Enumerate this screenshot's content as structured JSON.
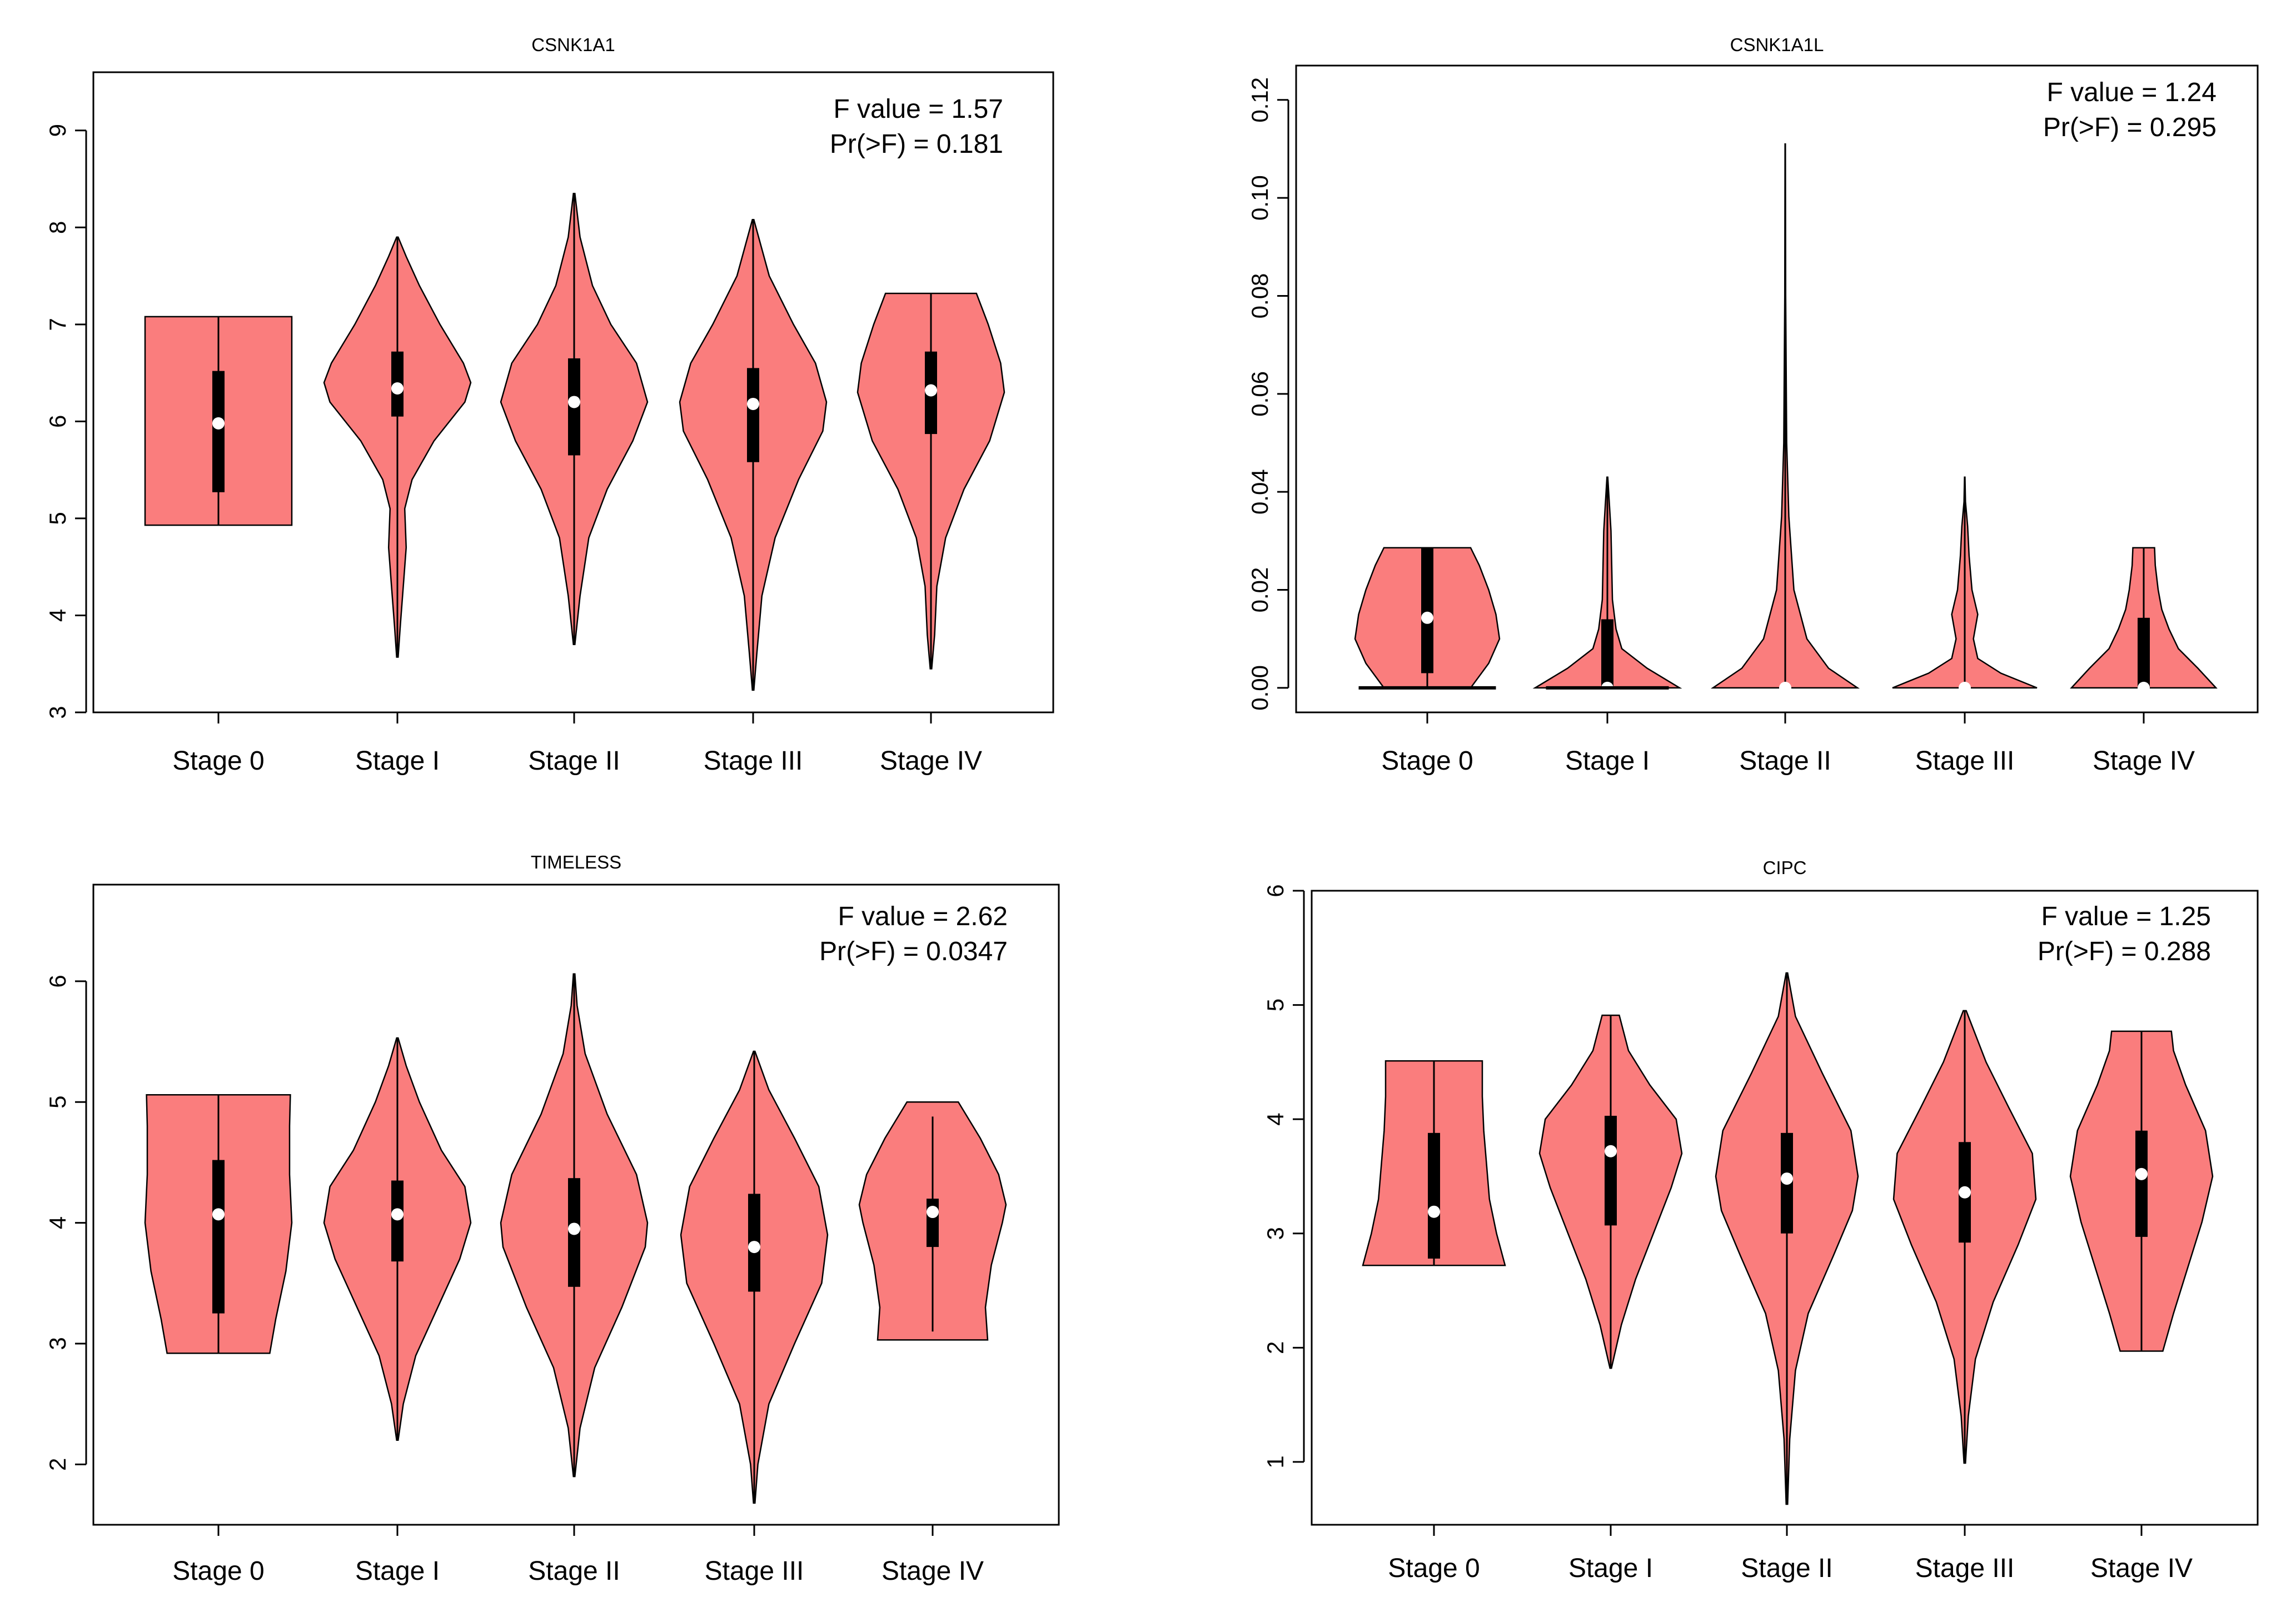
{
  "colors": {
    "violin_fill": "#FA7D7D",
    "outline": "#000000",
    "median": "#FFFFFF",
    "background": "#FFFFFF"
  },
  "chart_data": [
    {
      "type": "violin",
      "title": "CSNK1A1",
      "categories": [
        "Stage 0",
        "Stage I",
        "Stage II",
        "Stage III",
        "Stage IV"
      ],
      "ylim": [
        3,
        9.6
      ],
      "yticks": [
        3,
        4,
        5,
        6,
        7,
        8,
        9
      ],
      "ytick_labels": [
        "3",
        "4",
        "5",
        "6",
        "7",
        "8",
        "9"
      ],
      "f_value_text": "F value = 1.57",
      "p_value_text": "Pr(>F) = 0.181",
      "groups": [
        {
          "name": "Stage 0",
          "min": 4.93,
          "q1": 5.27,
          "median": 5.98,
          "q3": 6.52,
          "max": 7.08,
          "density": [
            [
              4.93,
              1.0
            ],
            [
              5.3,
              1.0
            ],
            [
              5.8,
              1.0
            ],
            [
              6.2,
              1.0
            ],
            [
              6.7,
              1.0
            ],
            [
              7.08,
              1.0
            ]
          ]
        },
        {
          "name": "Stage I",
          "min": 3.57,
          "q1": 6.05,
          "median": 6.34,
          "q3": 6.72,
          "max": 7.9,
          "density": [
            [
              3.57,
              0.01
            ],
            [
              3.9,
              0.04
            ],
            [
              4.3,
              0.08
            ],
            [
              4.7,
              0.12
            ],
            [
              5.1,
              0.1
            ],
            [
              5.4,
              0.2
            ],
            [
              5.8,
              0.5
            ],
            [
              6.2,
              0.92
            ],
            [
              6.4,
              1.0
            ],
            [
              6.6,
              0.9
            ],
            [
              7.0,
              0.58
            ],
            [
              7.4,
              0.3
            ],
            [
              7.7,
              0.12
            ],
            [
              7.9,
              0.01
            ]
          ]
        },
        {
          "name": "Stage II",
          "min": 3.7,
          "q1": 5.65,
          "median": 6.2,
          "q3": 6.65,
          "max": 8.35,
          "density": [
            [
              3.7,
              0.01
            ],
            [
              4.2,
              0.08
            ],
            [
              4.8,
              0.2
            ],
            [
              5.3,
              0.45
            ],
            [
              5.8,
              0.8
            ],
            [
              6.2,
              1.0
            ],
            [
              6.6,
              0.85
            ],
            [
              7.0,
              0.5
            ],
            [
              7.4,
              0.25
            ],
            [
              7.9,
              0.08
            ],
            [
              8.35,
              0.01
            ]
          ]
        },
        {
          "name": "Stage III",
          "min": 3.23,
          "q1": 5.58,
          "median": 6.18,
          "q3": 6.55,
          "max": 8.08,
          "density": [
            [
              3.23,
              0.01
            ],
            [
              3.6,
              0.05
            ],
            [
              4.2,
              0.12
            ],
            [
              4.8,
              0.3
            ],
            [
              5.4,
              0.62
            ],
            [
              5.9,
              0.95
            ],
            [
              6.2,
              1.0
            ],
            [
              6.6,
              0.85
            ],
            [
              7.0,
              0.55
            ],
            [
              7.5,
              0.22
            ],
            [
              8.08,
              0.01
            ]
          ]
        },
        {
          "name": "Stage IV",
          "min": 3.45,
          "q1": 5.87,
          "median": 6.32,
          "q3": 6.72,
          "max": 7.32,
          "density": [
            [
              3.45,
              0.01
            ],
            [
              3.8,
              0.05
            ],
            [
              4.3,
              0.08
            ],
            [
              4.8,
              0.2
            ],
            [
              5.3,
              0.45
            ],
            [
              5.8,
              0.8
            ],
            [
              6.3,
              1.0
            ],
            [
              6.6,
              0.95
            ],
            [
              7.0,
              0.78
            ],
            [
              7.32,
              0.62
            ]
          ]
        }
      ]
    },
    {
      "type": "violin",
      "title": "CSNK1A1L",
      "categories": [
        "Stage 0",
        "Stage I",
        "Stage II",
        "Stage III",
        "Stage IV"
      ],
      "ylim": [
        -0.005,
        0.127
      ],
      "yticks": [
        0,
        0.02,
        0.04,
        0.06,
        0.08,
        0.1,
        0.12
      ],
      "ytick_labels": [
        "0.00",
        "0.02",
        "0.04",
        "0.06",
        "0.08",
        "0.10",
        "0.12"
      ],
      "f_value_text": "F value = 1.24",
      "p_value_text": "Pr(>F) = 0.295",
      "groups": [
        {
          "name": "Stage 0",
          "min": 0,
          "q1": 0.003,
          "median": 0.0143,
          "q3": 0.0286,
          "max": 0.0286,
          "density": [
            [
              0,
              0.6
            ],
            [
              0.005,
              0.85
            ],
            [
              0.01,
              1.0
            ],
            [
              0.015,
              0.95
            ],
            [
              0.02,
              0.85
            ],
            [
              0.025,
              0.72
            ],
            [
              0.0286,
              0.6
            ]
          ]
        },
        {
          "name": "Stage I",
          "min": 0,
          "q1": 0,
          "median": 0,
          "q3": 0.014,
          "max": 0.043,
          "density": [
            [
              0,
              1.0
            ],
            [
              0.004,
              0.55
            ],
            [
              0.008,
              0.2
            ],
            [
              0.012,
              0.12
            ],
            [
              0.018,
              0.07
            ],
            [
              0.025,
              0.06
            ],
            [
              0.032,
              0.05
            ],
            [
              0.037,
              0.03
            ],
            [
              0.043,
              0.005
            ]
          ]
        },
        {
          "name": "Stage II",
          "min": 0,
          "q1": 0,
          "median": 0,
          "q3": 0,
          "max": 0.111,
          "density": [
            [
              0,
              1.0
            ],
            [
              0.004,
              0.6
            ],
            [
              0.01,
              0.3
            ],
            [
              0.02,
              0.12
            ],
            [
              0.035,
              0.05
            ],
            [
              0.05,
              0.02
            ],
            [
              0.08,
              0.006
            ],
            [
              0.111,
              0.002
            ]
          ]
        },
        {
          "name": "Stage III",
          "min": 0,
          "q1": 0,
          "median": 0,
          "q3": 0,
          "max": 0.043,
          "density": [
            [
              0,
              1.0
            ],
            [
              0.003,
              0.5
            ],
            [
              0.006,
              0.18
            ],
            [
              0.01,
              0.12
            ],
            [
              0.015,
              0.18
            ],
            [
              0.02,
              0.1
            ],
            [
              0.027,
              0.06
            ],
            [
              0.033,
              0.04
            ],
            [
              0.038,
              0.01
            ],
            [
              0.043,
              0.003
            ]
          ]
        },
        {
          "name": "Stage IV",
          "min": 0,
          "q1": 0,
          "median": 0,
          "q3": 0.0143,
          "max": 0.0286,
          "density": [
            [
              0,
              1.0
            ],
            [
              0.004,
              0.75
            ],
            [
              0.008,
              0.48
            ],
            [
              0.012,
              0.35
            ],
            [
              0.016,
              0.25
            ],
            [
              0.02,
              0.2
            ],
            [
              0.025,
              0.16
            ],
            [
              0.0286,
              0.15
            ]
          ]
        }
      ]
    },
    {
      "type": "violin",
      "title": "TIMELESS",
      "categories": [
        "Stage 0",
        "Stage I",
        "Stage II",
        "Stage III",
        "Stage IV"
      ],
      "ylim": [
        1.5,
        6.8
      ],
      "yticks": [
        2,
        3,
        4,
        5,
        6
      ],
      "ytick_labels": [
        "2",
        "3",
        "4",
        "5",
        "6"
      ],
      "f_value_text": "F value = 2.62",
      "p_value_text": "Pr(>F) = 0.0347",
      "groups": [
        {
          "name": "Stage 0",
          "min": 2.92,
          "q1": 3.25,
          "median": 4.07,
          "q3": 4.52,
          "max": 5.06,
          "density": [
            [
              2.92,
              0.7
            ],
            [
              3.2,
              0.78
            ],
            [
              3.6,
              0.92
            ],
            [
              4.0,
              1.0
            ],
            [
              4.4,
              0.97
            ],
            [
              4.8,
              0.97
            ],
            [
              5.06,
              0.98
            ]
          ]
        },
        {
          "name": "Stage I",
          "min": 2.2,
          "q1": 3.68,
          "median": 4.07,
          "q3": 4.35,
          "max": 5.53,
          "density": [
            [
              2.2,
              0.01
            ],
            [
              2.5,
              0.08
            ],
            [
              2.9,
              0.25
            ],
            [
              3.3,
              0.55
            ],
            [
              3.7,
              0.85
            ],
            [
              4.0,
              1.0
            ],
            [
              4.3,
              0.92
            ],
            [
              4.6,
              0.6
            ],
            [
              5.0,
              0.3
            ],
            [
              5.3,
              0.12
            ],
            [
              5.53,
              0.01
            ]
          ]
        },
        {
          "name": "Stage II",
          "min": 1.9,
          "q1": 3.47,
          "median": 3.95,
          "q3": 4.37,
          "max": 6.06,
          "density": [
            [
              1.9,
              0.01
            ],
            [
              2.3,
              0.08
            ],
            [
              2.8,
              0.28
            ],
            [
              3.3,
              0.65
            ],
            [
              3.8,
              0.97
            ],
            [
              4.0,
              1.0
            ],
            [
              4.4,
              0.85
            ],
            [
              4.9,
              0.45
            ],
            [
              5.4,
              0.15
            ],
            [
              5.8,
              0.04
            ],
            [
              6.06,
              0.01
            ]
          ]
        },
        {
          "name": "Stage III",
          "min": 1.68,
          "q1": 3.43,
          "median": 3.8,
          "q3": 4.24,
          "max": 5.42,
          "density": [
            [
              1.68,
              0.01
            ],
            [
              2.0,
              0.05
            ],
            [
              2.5,
              0.2
            ],
            [
              3.0,
              0.55
            ],
            [
              3.5,
              0.92
            ],
            [
              3.9,
              1.0
            ],
            [
              4.3,
              0.88
            ],
            [
              4.7,
              0.55
            ],
            [
              5.1,
              0.2
            ],
            [
              5.42,
              0.01
            ]
          ]
        },
        {
          "name": "Stage IV",
          "min": 3.1,
          "q1": 3.8,
          "median": 4.09,
          "q3": 4.2,
          "max": 4.88,
          "density": [
            [
              3.03,
              0.75
            ],
            [
              3.3,
              0.72
            ],
            [
              3.65,
              0.8
            ],
            [
              4.0,
              0.95
            ],
            [
              4.15,
              1.0
            ],
            [
              4.4,
              0.9
            ],
            [
              4.7,
              0.65
            ],
            [
              5.0,
              0.35
            ]
          ]
        }
      ]
    },
    {
      "type": "violin",
      "title": "CIPC",
      "categories": [
        "Stage 0",
        "Stage I",
        "Stage II",
        "Stage III",
        "Stage IV"
      ],
      "ylim": [
        0.45,
        6.0
      ],
      "yticks": [
        1,
        2,
        3,
        4,
        5,
        6
      ],
      "ytick_labels": [
        "1",
        "2",
        "3",
        "4",
        "5",
        "6"
      ],
      "f_value_text": "F value = 1.25",
      "p_value_text": "Pr(>F) = 0.288",
      "groups": [
        {
          "name": "Stage 0",
          "min": 2.72,
          "q1": 2.78,
          "median": 3.19,
          "q3": 3.88,
          "max": 4.51,
          "density": [
            [
              2.72,
              1.0
            ],
            [
              3.0,
              0.88
            ],
            [
              3.3,
              0.78
            ],
            [
              3.6,
              0.74
            ],
            [
              3.9,
              0.7
            ],
            [
              4.2,
              0.68
            ],
            [
              4.51,
              0.68
            ]
          ]
        },
        {
          "name": "Stage I",
          "min": 1.82,
          "q1": 3.07,
          "median": 3.72,
          "q3": 4.03,
          "max": 4.91,
          "density": [
            [
              1.82,
              0.01
            ],
            [
              2.2,
              0.15
            ],
            [
              2.6,
              0.35
            ],
            [
              3.0,
              0.6
            ],
            [
              3.4,
              0.85
            ],
            [
              3.7,
              1.0
            ],
            [
              4.0,
              0.92
            ],
            [
              4.3,
              0.55
            ],
            [
              4.6,
              0.25
            ],
            [
              4.91,
              0.12
            ]
          ]
        },
        {
          "name": "Stage II",
          "min": 0.63,
          "q1": 3.0,
          "median": 3.48,
          "q3": 3.88,
          "max": 5.28,
          "density": [
            [
              0.63,
              0.01
            ],
            [
              1.2,
              0.04
            ],
            [
              1.8,
              0.12
            ],
            [
              2.3,
              0.3
            ],
            [
              2.8,
              0.65
            ],
            [
              3.2,
              0.92
            ],
            [
              3.5,
              1.0
            ],
            [
              3.9,
              0.9
            ],
            [
              4.4,
              0.5
            ],
            [
              4.9,
              0.12
            ],
            [
              5.28,
              0.01
            ]
          ]
        },
        {
          "name": "Stage III",
          "min": 0.99,
          "q1": 2.92,
          "median": 3.36,
          "q3": 3.8,
          "max": 4.95,
          "density": [
            [
              0.99,
              0.01
            ],
            [
              1.4,
              0.05
            ],
            [
              1.9,
              0.15
            ],
            [
              2.4,
              0.4
            ],
            [
              2.9,
              0.75
            ],
            [
              3.3,
              1.0
            ],
            [
              3.7,
              0.95
            ],
            [
              4.1,
              0.62
            ],
            [
              4.5,
              0.3
            ],
            [
              4.95,
              0.02
            ]
          ]
        },
        {
          "name": "Stage IV",
          "min": 1.97,
          "q1": 2.97,
          "median": 3.52,
          "q3": 3.9,
          "max": 4.77,
          "density": [
            [
              1.97,
              0.3
            ],
            [
              2.3,
              0.45
            ],
            [
              2.7,
              0.65
            ],
            [
              3.1,
              0.85
            ],
            [
              3.5,
              1.0
            ],
            [
              3.9,
              0.9
            ],
            [
              4.3,
              0.62
            ],
            [
              4.6,
              0.45
            ],
            [
              4.77,
              0.42
            ]
          ]
        }
      ]
    }
  ]
}
